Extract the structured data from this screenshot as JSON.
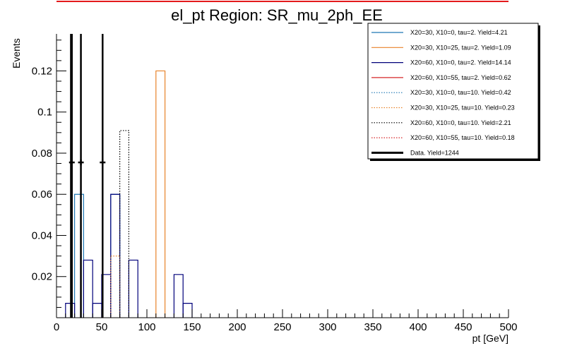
{
  "chart_data": {
    "type": "histogram",
    "title": "el_pt Region: SR_mu_2ph_EE",
    "xlabel": "pt [GeV]",
    "ylabel": "Events",
    "xlim": [
      0,
      500
    ],
    "ylim": [
      0,
      0.138
    ],
    "bin_width": 10,
    "x_ticks": [
      0,
      50,
      100,
      150,
      200,
      250,
      300,
      350,
      400,
      450,
      500
    ],
    "y_ticks": [
      0.02,
      0.04,
      0.06,
      0.08,
      0.1,
      0.12
    ],
    "y_tick_labels": [
      "0.02",
      "0.04",
      "0.06",
      "0.08",
      "0.1",
      "0.12"
    ],
    "legend_position": "top-right",
    "colors": {
      "blue": "#1f77b4",
      "orange": "#e8832a",
      "navy": "#00007a",
      "red": "#d62728",
      "black": "#000000",
      "title_line": "#e31a1c"
    },
    "series": [
      {
        "name": "X20=30, X10=0, tau=2. Yield=4.21",
        "color": "#1f77b4",
        "style": "solid",
        "bins": [
          {
            "x": 20,
            "y": 0.06
          },
          {
            "x": 60,
            "y": 0.06
          }
        ]
      },
      {
        "name": "X20=30, X10=25, tau=2. Yield=1.09",
        "color": "#e8832a",
        "style": "solid",
        "bins": [
          {
            "x": 110,
            "y": 0.12
          }
        ]
      },
      {
        "name": "X20=60, X10=0, tau=2. Yield=14.14",
        "color": "#00007a",
        "style": "solid",
        "bins": [
          {
            "x": 10,
            "y": 0.007
          },
          {
            "x": 30,
            "y": 0.028
          },
          {
            "x": 40,
            "y": 0.007
          },
          {
            "x": 50,
            "y": 0.021
          },
          {
            "x": 60,
            "y": 0.06
          },
          {
            "x": 80,
            "y": 0.028
          },
          {
            "x": 130,
            "y": 0.021
          },
          {
            "x": 140,
            "y": 0.007
          }
        ]
      },
      {
        "name": "X20=60, X10=55, tau=2. Yield=0.62",
        "color": "#d62728",
        "style": "solid",
        "bins": []
      },
      {
        "name": "X20=30, X10=0, tau=10. Yield=0.42",
        "color": "#1f77b4",
        "style": "dotted",
        "bins": []
      },
      {
        "name": "X20=30, X10=25, tau=10. Yield=0.23",
        "color": "#e8832a",
        "style": "dotted",
        "bins": [
          {
            "x": 60,
            "y": 0.03
          }
        ]
      },
      {
        "name": "X20=60, X10=0, tau=10. Yield=2.21",
        "color": "#000000",
        "style": "dotted",
        "bins": [
          {
            "x": 70,
            "y": 0.091
          }
        ]
      },
      {
        "name": "X20=60, X10=55, tau=10. Yield=0.18",
        "color": "#d62728",
        "style": "dotted",
        "bins": []
      }
    ],
    "data_series": {
      "name": "Data. Yield=1244",
      "color": "#000000",
      "points": [
        {
          "x": 17,
          "y": 0.0755
        },
        {
          "x": 27,
          "y": 0.0755
        },
        {
          "x": 51,
          "y": 0.0755
        }
      ]
    },
    "data_vertical_lines": [
      16,
      17,
      27,
      51
    ]
  }
}
